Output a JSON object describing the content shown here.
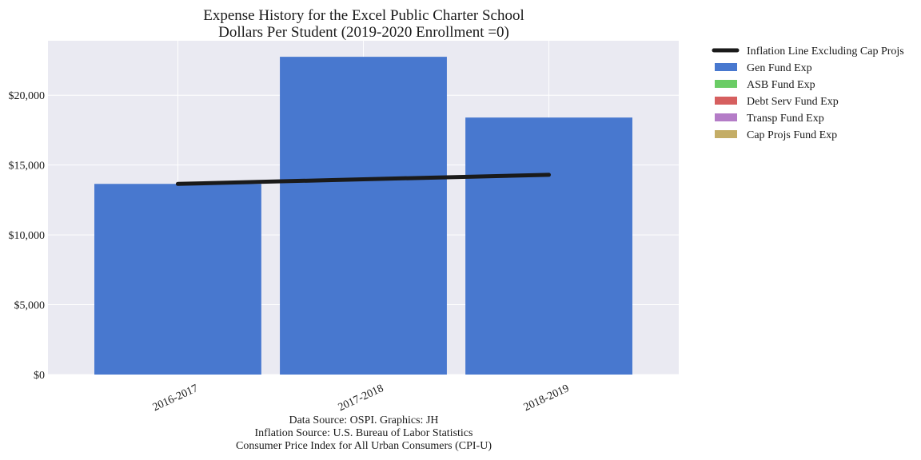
{
  "chart_data": {
    "type": "bar",
    "title_lines": [
      "Expense History for the Excel Public Charter School",
      "Dollars Per Student (2019-2020 Enrollment =0)"
    ],
    "categories": [
      "2016-2017",
      "2017-2018",
      "2018-2019"
    ],
    "series": [
      {
        "name": "Gen Fund Exp",
        "values": [
          13650,
          22750,
          18400
        ],
        "color": "#4878cf"
      },
      {
        "name": "ASB Fund Exp",
        "values": [
          0,
          0,
          0
        ],
        "color": "#6acc65"
      },
      {
        "name": "Debt Serv Fund Exp",
        "values": [
          0,
          0,
          0
        ],
        "color": "#d65f5f"
      },
      {
        "name": "Transp Fund Exp",
        "values": [
          0,
          0,
          0
        ],
        "color": "#b47cc7"
      },
      {
        "name": "Cap Projs Fund Exp",
        "values": [
          0,
          0,
          0
        ],
        "color": "#c4ad66"
      }
    ],
    "line_series": {
      "name": "Inflation Line Excluding Cap Projs",
      "values": [
        13650,
        13980,
        14300
      ],
      "color": "#1a1a1a"
    },
    "ylim": [
      0,
      23900
    ],
    "yticks": [
      0,
      5000,
      10000,
      15000,
      20000
    ],
    "ytick_labels": [
      "$0",
      "$5,000",
      "$10,000",
      "$15,000",
      "$20,000"
    ],
    "xlabel": "",
    "ylabel": "",
    "grid": true,
    "legend_position": "outside-top-right",
    "plot_background": "#eaeaf2",
    "footnote_lines": [
      "Data Source: OSPI. Graphics: JH",
      "Inflation Source: U.S. Bureau of Labor Statistics",
      "Consumer Price Index for All Urban Consumers (CPI-U)"
    ]
  }
}
